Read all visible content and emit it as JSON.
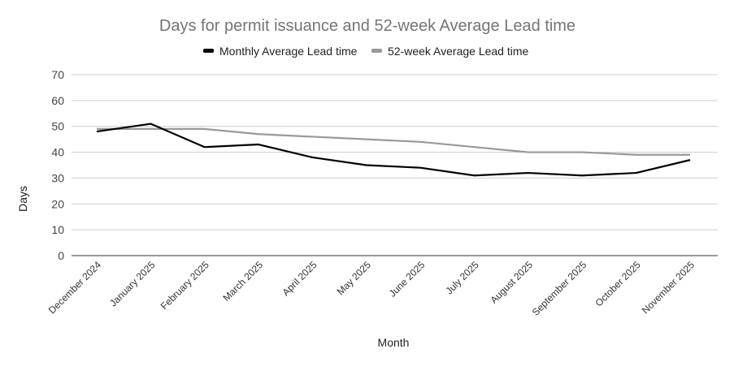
{
  "chart_data": {
    "type": "line",
    "title": "Days for permit issuance and 52-week Average Lead time",
    "xlabel": "Month",
    "ylabel": "Days",
    "ylim": [
      0,
      70
    ],
    "yticks": [
      0,
      10,
      20,
      30,
      40,
      50,
      60,
      70
    ],
    "grid": true,
    "legend_position": "top",
    "categories": [
      "December 2024",
      "January 2025",
      "February 2025",
      "March 2025",
      "April 2025",
      "May 2025",
      "June 2025",
      "July 2025",
      "August 2025",
      "September 2025",
      "October 2025",
      "November 2025"
    ],
    "series": [
      {
        "name": "Monthly Average Lead time",
        "color": "#000000",
        "values": [
          48,
          51,
          42,
          43,
          38,
          35,
          34,
          31,
          32,
          31,
          32,
          37
        ]
      },
      {
        "name": "52-week Average Lead time",
        "color": "#999999",
        "values": [
          49,
          49,
          49,
          47,
          46,
          45,
          44,
          42,
          40,
          40,
          39,
          39
        ]
      }
    ]
  }
}
